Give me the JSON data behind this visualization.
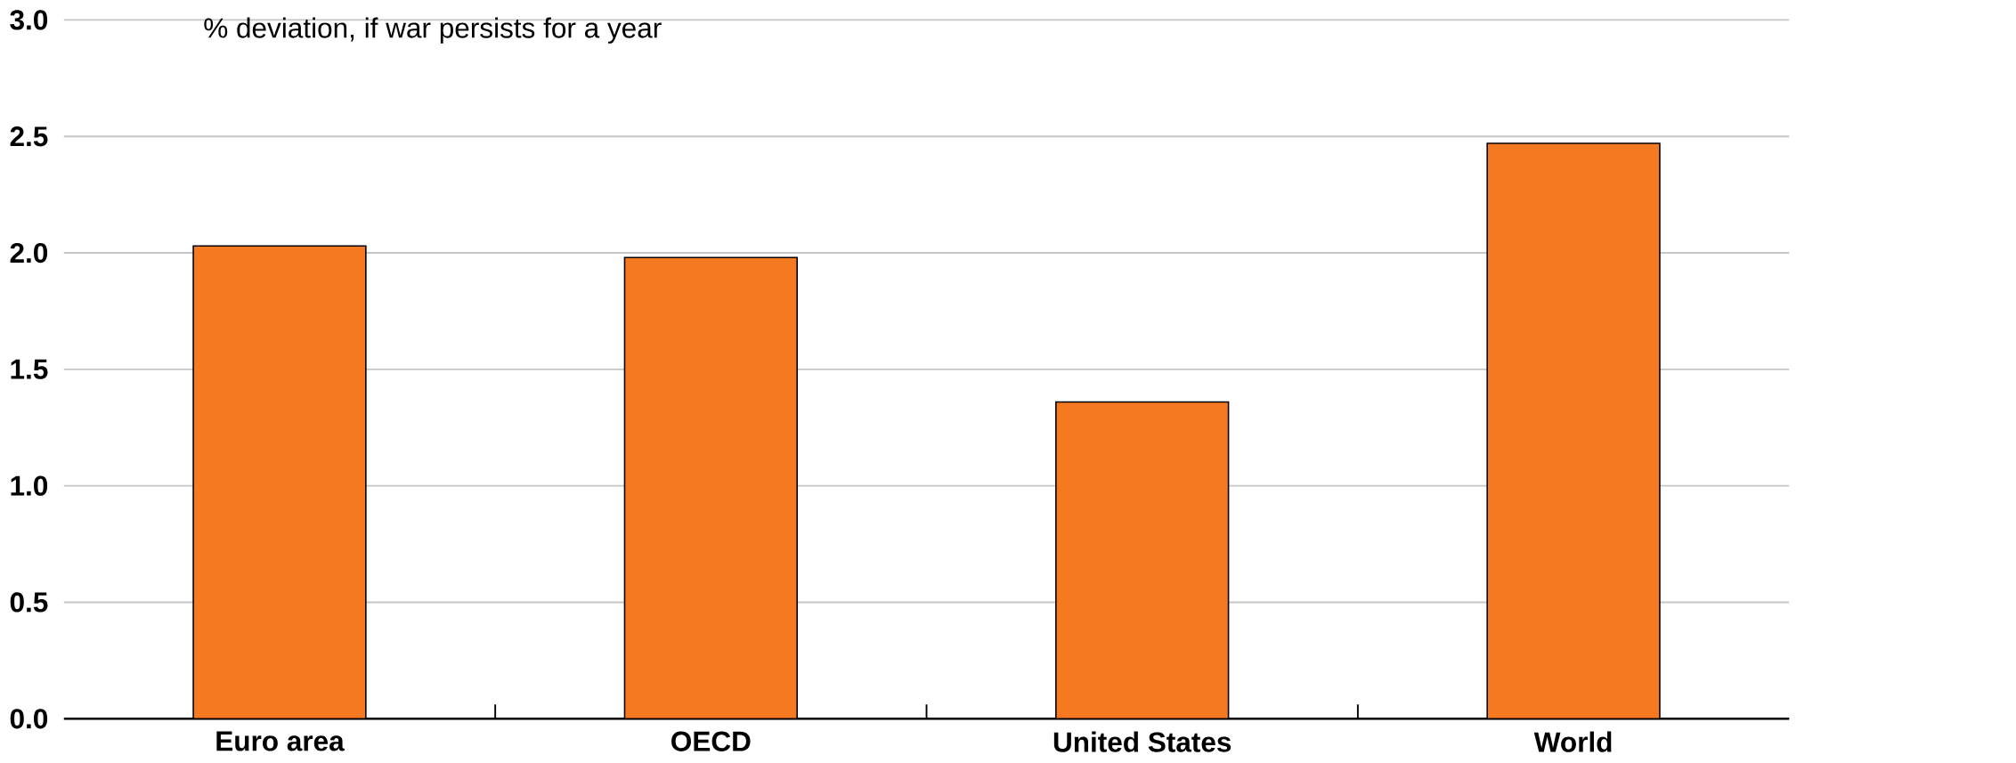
{
  "chart_data": {
    "type": "bar",
    "title": "% deviation, if war persists for a year",
    "categories": [
      "Euro area",
      "OECD",
      "United States",
      "World"
    ],
    "values": [
      2.03,
      1.98,
      1.36,
      2.47
    ],
    "color": "#f47920",
    "ylim": [
      0,
      3
    ],
    "yticks": [
      {
        "value": 0,
        "label": "0.0"
      },
      {
        "value": 0.5,
        "label": "0.5"
      },
      {
        "value": 1,
        "label": "1.0"
      },
      {
        "value": 1.5,
        "label": "1.5"
      },
      {
        "value": 2,
        "label": "2.0"
      },
      {
        "value": 2.5,
        "label": "2.5"
      },
      {
        "value": 3,
        "label": "3.0"
      }
    ],
    "grid": "y"
  }
}
